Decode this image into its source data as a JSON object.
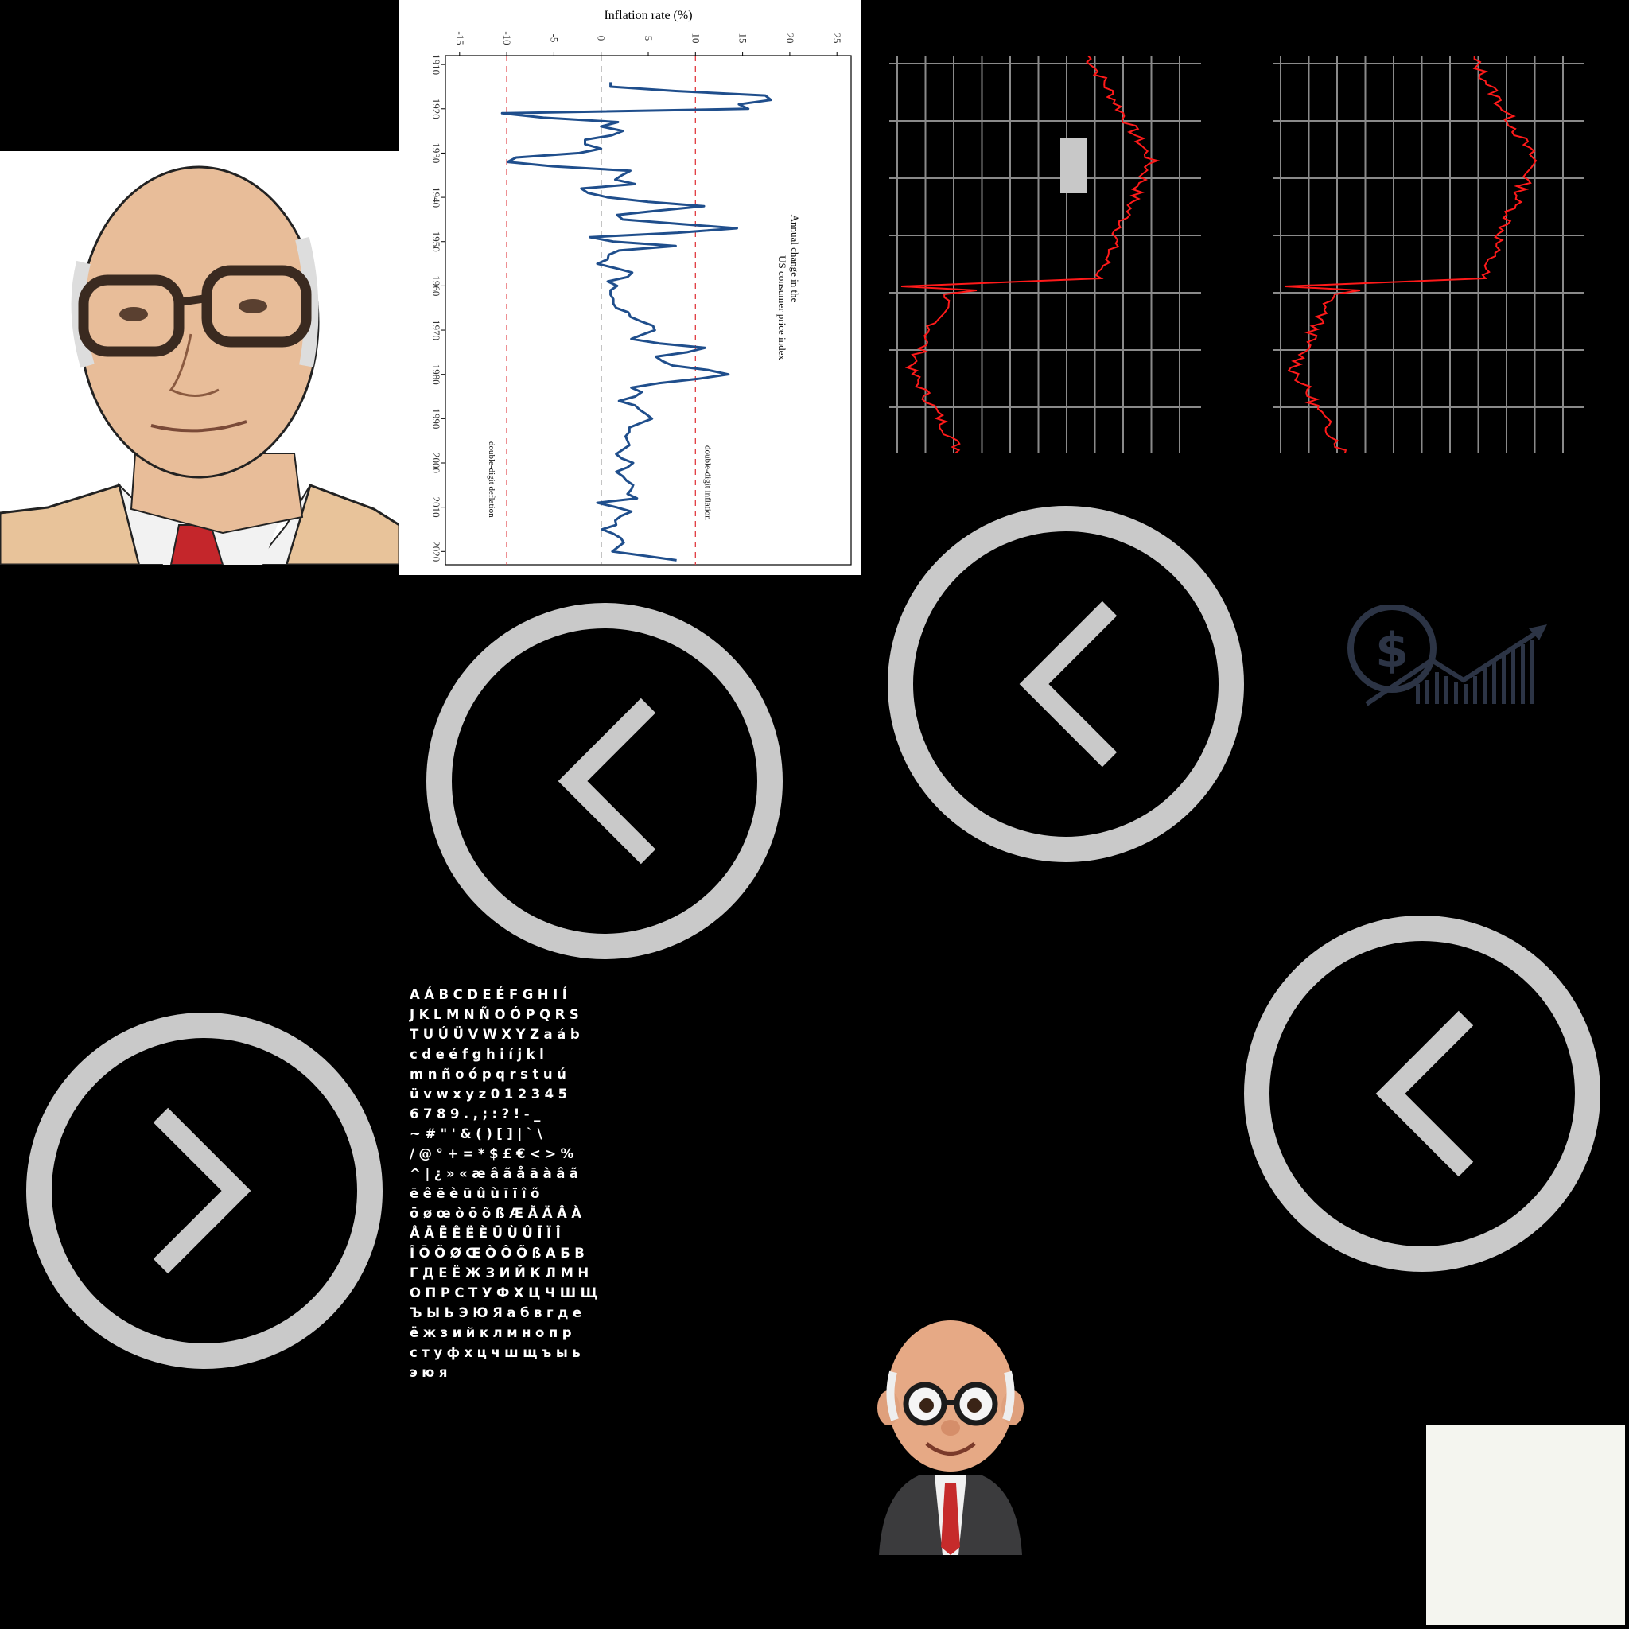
{
  "colors": {
    "background": "#000000",
    "circle": "#c9c9c9",
    "chart_line": "#1f4e8c",
    "threshold_line": "#e0393e",
    "zero_line": "#555555",
    "red_line": "#ff1a1a",
    "grid": "#8a8a8a",
    "paper": "#f4f5ef"
  },
  "inflation_chart": {
    "title": "Inflation rate (%)",
    "annotation_line1": "Annual change in the",
    "annotation_line2": "US consumer price index",
    "label_inflation": "double-digit inflation",
    "label_deflation": "double-digit deflation"
  },
  "chart_data": {
    "type": "line",
    "title": "Inflation rate (%)",
    "xlabel": "",
    "ylabel": "Inflation rate (%)",
    "ylim": [
      -15,
      25
    ],
    "xlim": [
      1910,
      2020
    ],
    "x_ticks": [
      1910,
      1920,
      1930,
      1940,
      1950,
      1960,
      1970,
      1980,
      1990,
      2000,
      2010,
      2020
    ],
    "y_ticks": [
      -15,
      -10,
      -5,
      0,
      5,
      10,
      15,
      20,
      25
    ],
    "x_tick_labels": [
      "1910",
      "1920",
      "1930",
      "1940",
      "1950",
      "1960",
      "1970",
      "1980",
      "1990",
      "2000",
      "2010",
      "2020"
    ],
    "y_tick_labels": [
      "-15",
      "-10",
      "-5",
      "0",
      "5",
      "10",
      "15",
      "20",
      "25"
    ],
    "reference_lines": [
      10,
      0,
      -10
    ],
    "series": [
      {
        "x": [
          1914,
          1915,
          1916,
          1917,
          1918,
          1919,
          1920,
          1921,
          1922,
          1923,
          1924,
          1925,
          1926,
          1927,
          1928,
          1929,
          1930,
          1931,
          1932,
          1933,
          1934,
          1935,
          1936,
          1937,
          1938,
          1939,
          1940,
          1941,
          1942,
          1943,
          1944,
          1945,
          1946,
          1947,
          1948,
          1949,
          1950,
          1951,
          1952,
          1953,
          1954,
          1955,
          1956,
          1957,
          1958,
          1959,
          1960,
          1961,
          1962,
          1963,
          1964,
          1965,
          1966,
          1967,
          1968,
          1969,
          1970,
          1971,
          1972,
          1973,
          1974,
          1975,
          1976,
          1977,
          1978,
          1979,
          1980,
          1981,
          1982,
          1983,
          1984,
          1985,
          1986,
          1987,
          1988,
          1989,
          1990,
          1991,
          1992,
          1993,
          1994,
          1995,
          1996,
          1997,
          1998,
          1999,
          2000,
          2001,
          2002,
          2003,
          2004,
          2005,
          2006,
          2007,
          2008,
          2009,
          2010,
          2011,
          2012,
          2013,
          2014,
          2015,
          2016,
          2017,
          2018,
          2019,
          2020,
          2021,
          2022
        ],
        "values": [
          1.0,
          1.0,
          7.9,
          17.4,
          18.0,
          14.6,
          15.6,
          -10.5,
          -6.1,
          1.8,
          0.0,
          2.3,
          1.1,
          -1.7,
          -1.7,
          0.0,
          -2.3,
          -9.0,
          -9.9,
          -5.1,
          3.1,
          2.2,
          1.5,
          3.6,
          -2.1,
          -1.4,
          0.7,
          5.0,
          10.9,
          6.1,
          1.7,
          2.3,
          8.3,
          14.4,
          8.1,
          -1.2,
          1.3,
          7.9,
          1.9,
          0.8,
          0.7,
          -0.4,
          1.5,
          3.3,
          2.8,
          0.7,
          1.7,
          1.0,
          1.0,
          1.3,
          1.3,
          1.6,
          2.9,
          3.1,
          4.2,
          5.5,
          5.7,
          4.4,
          3.2,
          6.2,
          11.0,
          9.1,
          5.8,
          6.5,
          7.6,
          11.3,
          13.5,
          10.3,
          6.1,
          3.2,
          4.3,
          3.6,
          1.9,
          3.6,
          4.1,
          4.8,
          5.4,
          4.2,
          3.0,
          3.0,
          2.6,
          2.8,
          3.0,
          2.3,
          1.6,
          2.2,
          3.4,
          2.8,
          1.6,
          2.3,
          2.7,
          3.4,
          3.2,
          2.8,
          3.8,
          -0.4,
          1.6,
          3.2,
          2.1,
          1.5,
          1.6,
          0.1,
          1.3,
          2.1,
          2.4,
          1.8,
          1.2,
          4.7,
          8.0
        ]
      }
    ]
  },
  "right_charts": {
    "left_gray_box": true
  },
  "glyph_atlas": {
    "rows": [
      "AÁBCDEÉFGHIÍ",
      "JKLMNÑOÓPQRS",
      "TUÚÜVWXYZaáb",
      "cdeéfghiíjkl",
      "mnñoópqrstuú",
      "üvwxyz012345",
      "6789.,;:?!-_",
      "~#\"'&()[]|`\\",
      "/@°+=*$£€<>%",
      "^|¿»«æâãåāàâã",
      "ēêëèūûùīïîõ",
      "ōøœòōõßÆÃÄÂÀ",
      "ÅĀĒÊËÈŪÙÛĪÏÎ",
      "ÎŌÖØŒÒÔÕßАБВ",
      "ГДЕЁЖЗИЙКЛМН",
      "ОПРСТУФХЦЧШЩ",
      "ЪЫЬЭЮЯабвгде",
      "ёжзийклмнопр",
      "стуфхцчшщъыь",
      "эюя"
    ]
  },
  "icons": {
    "finance": "dollar-growth-chart-icon",
    "nav_left": "chevron-left-icon",
    "nav_right": "chevron-right-icon",
    "portrait_top": "portrait-illustration",
    "portrait_bottom": "cartoon-portrait-illustration"
  }
}
